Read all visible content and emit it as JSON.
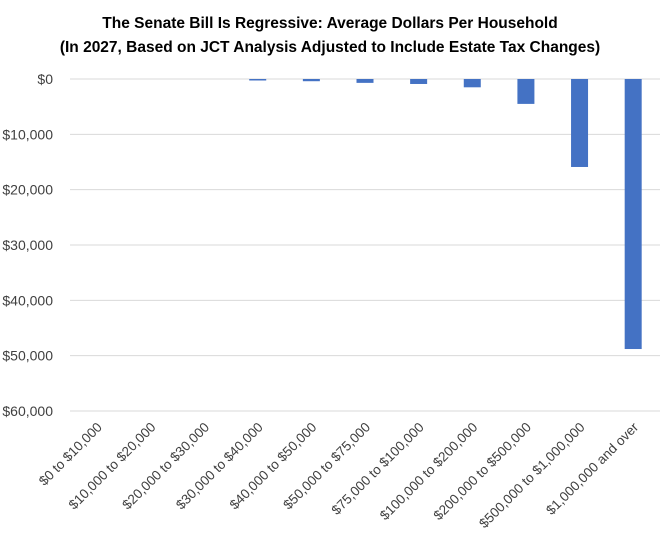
{
  "chart_data": {
    "type": "bar",
    "title_lines": [
      "The Senate Bill Is Regressive: Average Dollars Per Household",
      "(In 2027, Based on JCT Analysis Adjusted to Include Estate Tax Changes)"
    ],
    "categories": [
      "$0 to $10,000",
      "$10,000 to $20,000",
      "$20,000 to $30,000",
      "$30,000 to $40,000",
      "$40,000 to $50,000",
      "$50,000 to $75,000",
      "$75,000 to $100,000",
      "$100,000 to $200,000",
      "$200,000 to $500,000",
      "$500,000 to $1,000,000",
      "$1,000,000 and over"
    ],
    "values": [
      0,
      0,
      0,
      -200,
      -400,
      -700,
      -900,
      -1500,
      -4500,
      -15900,
      -48800
    ],
    "ylim": [
      -60000,
      0
    ],
    "yticks": [
      0,
      -10000,
      -20000,
      -30000,
      -40000,
      -50000,
      -60000
    ],
    "ytick_labels": [
      "$0",
      "$10,000",
      "$20,000",
      "$30,000",
      "$40,000",
      "$50,000",
      "$60,000"
    ],
    "xlabel": "",
    "ylabel": "",
    "grid": true,
    "bar_color": "#4472c4"
  }
}
